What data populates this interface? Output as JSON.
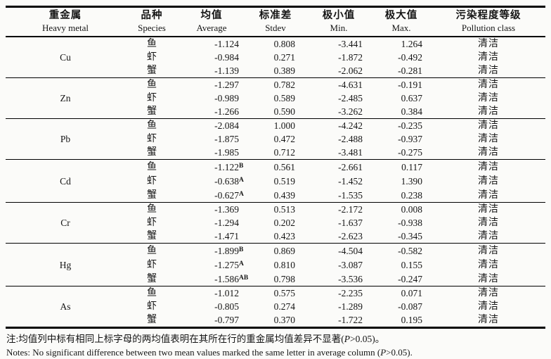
{
  "table": {
    "header": {
      "cols": [
        {
          "zh": "重金属",
          "en": "Heavy metal"
        },
        {
          "zh": "品种",
          "en": "Species"
        },
        {
          "zh": "均值",
          "en": "Average"
        },
        {
          "zh": "标准差",
          "en": "Stdev"
        },
        {
          "zh": "极小值",
          "en": "Min."
        },
        {
          "zh": "极大值",
          "en": "Max."
        },
        {
          "zh": "污染程度等级",
          "en": "Pollution class"
        }
      ]
    },
    "groups": [
      {
        "metal": "Cu",
        "rows": [
          {
            "species": "鱼",
            "avg": "-1.124",
            "sup": "",
            "stdev": "0.808",
            "min": "-3.441",
            "max": "1.264",
            "pclass": "清洁"
          },
          {
            "species": "虾",
            "avg": "-0.984",
            "sup": "",
            "stdev": "0.271",
            "min": "-1.872",
            "max": "-0.492",
            "pclass": "清洁"
          },
          {
            "species": "蟹",
            "avg": "-1.139",
            "sup": "",
            "stdev": "0.389",
            "min": "-2.062",
            "max": "-0.281",
            "pclass": "清洁"
          }
        ]
      },
      {
        "metal": "Zn",
        "rows": [
          {
            "species": "鱼",
            "avg": "-1.297",
            "sup": "",
            "stdev": "0.782",
            "min": "-4.631",
            "max": "-0.191",
            "pclass": "清洁"
          },
          {
            "species": "虾",
            "avg": "-0.989",
            "sup": "",
            "stdev": "0.589",
            "min": "-2.485",
            "max": "0.637",
            "pclass": "清洁"
          },
          {
            "species": "蟹",
            "avg": "-1.266",
            "sup": "",
            "stdev": "0.590",
            "min": "-3.262",
            "max": "0.384",
            "pclass": "清洁"
          }
        ]
      },
      {
        "metal": "Pb",
        "rows": [
          {
            "species": "鱼",
            "avg": "-2.084",
            "sup": "",
            "stdev": "1.000",
            "min": "-4.242",
            "max": "-0.235",
            "pclass": "清洁"
          },
          {
            "species": "虾",
            "avg": "-1.875",
            "sup": "",
            "stdev": "0.472",
            "min": "-2.488",
            "max": "-0.937",
            "pclass": "清洁"
          },
          {
            "species": "蟹",
            "avg": "-1.985",
            "sup": "",
            "stdev": "0.712",
            "min": "-3.481",
            "max": "-0.275",
            "pclass": "清洁"
          }
        ]
      },
      {
        "metal": "Cd",
        "rows": [
          {
            "species": "鱼",
            "avg": "-1.122",
            "sup": "B",
            "stdev": "0.561",
            "min": "-2.661",
            "max": "0.117",
            "pclass": "清洁"
          },
          {
            "species": "虾",
            "avg": "-0.638",
            "sup": "A",
            "stdev": "0.519",
            "min": "-1.452",
            "max": "1.390",
            "pclass": "清洁"
          },
          {
            "species": "蟹",
            "avg": "-0.627",
            "sup": "A",
            "stdev": "0.439",
            "min": "-1.535",
            "max": "0.238",
            "pclass": "清洁"
          }
        ]
      },
      {
        "metal": "Cr",
        "rows": [
          {
            "species": "鱼",
            "avg": "-1.369",
            "sup": "",
            "stdev": "0.513",
            "min": "-2.172",
            "max": "0.008",
            "pclass": "清洁"
          },
          {
            "species": "虾",
            "avg": "-1.294",
            "sup": "",
            "stdev": "0.202",
            "min": "-1.637",
            "max": "-0.938",
            "pclass": "清洁"
          },
          {
            "species": "蟹",
            "avg": "-1.471",
            "sup": "",
            "stdev": "0.423",
            "min": "-2.623",
            "max": "-0.345",
            "pclass": "清洁"
          }
        ]
      },
      {
        "metal": "Hg",
        "rows": [
          {
            "species": "鱼",
            "avg": "-1.899",
            "sup": "B",
            "stdev": "0.869",
            "min": "-4.504",
            "max": "-0.582",
            "pclass": "清洁"
          },
          {
            "species": "虾",
            "avg": "-1.275",
            "sup": "A",
            "stdev": "0.810",
            "min": "-3.087",
            "max": "0.155",
            "pclass": "清洁"
          },
          {
            "species": "蟹",
            "avg": "-1.586",
            "sup": "AB",
            "stdev": "0.798",
            "min": "-3.536",
            "max": "-0.247",
            "pclass": "清洁"
          }
        ]
      },
      {
        "metal": "As",
        "rows": [
          {
            "species": "鱼",
            "avg": "-1.012",
            "sup": "",
            "stdev": "0.575",
            "min": "-2.235",
            "max": "0.071",
            "pclass": "清洁"
          },
          {
            "species": "虾",
            "avg": "-0.805",
            "sup": "",
            "stdev": "0.274",
            "min": "-1.289",
            "max": "-0.087",
            "pclass": "清洁"
          },
          {
            "species": "蟹",
            "avg": "-0.797",
            "sup": "",
            "stdev": "0.370",
            "min": "-1.722",
            "max": "0.195",
            "pclass": "清洁"
          }
        ]
      }
    ],
    "notes": {
      "zh_before": "注:均值列中标有相同上标字母的两均值表明在其所在行的重金属均值差异不显著(",
      "zh_p": "P",
      "zh_after": ">0.05)。",
      "en_before": "Notes: No significant difference between two mean values marked the same letter in average column (",
      "en_p": "P",
      "en_after": ">0.05)."
    }
  }
}
